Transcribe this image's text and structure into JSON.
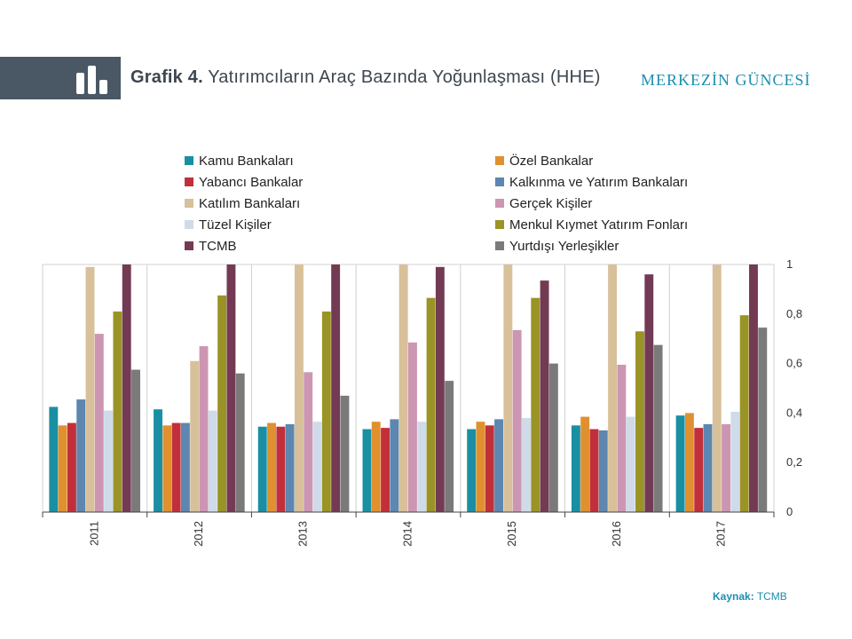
{
  "header": {
    "title_prefix": "Grafik 4.",
    "title": "Yatırımcıların Araç Bazında Yoğunlaşması (HHE)",
    "brand": "MERKEZİN GÜNCESİ"
  },
  "source": {
    "label": "Kaynak:",
    "value": "TCMB"
  },
  "colors": {
    "header_band": "#4a5866",
    "brand": "#1a8fb0"
  },
  "chart_data": {
    "type": "bar",
    "title": "",
    "xlabel": "",
    "ylabel": "",
    "ylim": [
      0,
      1
    ],
    "yticks": [
      "0",
      "0,2",
      "0,4",
      "0,6",
      "0,8",
      "1"
    ],
    "y_axis_position": "right",
    "grid": false,
    "legend_placement": "top",
    "categories": [
      "2011",
      "2012",
      "2013",
      "2014",
      "2015",
      "2016",
      "2017"
    ],
    "series": [
      {
        "name": "Kamu Bankaları",
        "color": "#1a8fa3",
        "values": [
          0.425,
          0.415,
          0.345,
          0.335,
          0.335,
          0.35,
          0.39
        ]
      },
      {
        "name": "Özel Bankalar",
        "color": "#e0902e",
        "values": [
          0.35,
          0.35,
          0.36,
          0.365,
          0.365,
          0.385,
          0.4
        ]
      },
      {
        "name": "Yabancı Bankalar",
        "color": "#c1303a",
        "values": [
          0.36,
          0.36,
          0.345,
          0.34,
          0.35,
          0.335,
          0.34
        ]
      },
      {
        "name": "Kalkınma ve Yatırım Bankaları",
        "color": "#5d86b0",
        "values": [
          0.455,
          0.36,
          0.355,
          0.375,
          0.375,
          0.33,
          0.355
        ]
      },
      {
        "name": "Katılım Bankaları",
        "color": "#d8c09a",
        "values": [
          0.99,
          0.61,
          1.0,
          1.0,
          1.0,
          1.0,
          1.0
        ]
      },
      {
        "name": "Gerçek Kişiler",
        "color": "#cc96b3",
        "values": [
          0.72,
          0.67,
          0.565,
          0.685,
          0.735,
          0.595,
          0.355
        ]
      },
      {
        "name": "Tüzel Kişiler",
        "color": "#cfdbe8",
        "values": [
          0.41,
          0.41,
          0.365,
          0.365,
          0.38,
          0.385,
          0.405
        ]
      },
      {
        "name": "Menkul Kıymet Yatırım Fonları",
        "color": "#9a9326",
        "values": [
          0.81,
          0.875,
          0.81,
          0.865,
          0.865,
          0.73,
          0.795
        ]
      },
      {
        "name": "TCMB",
        "color": "#733a54",
        "values": [
          1.0,
          1.0,
          1.0,
          0.99,
          0.935,
          0.96,
          1.0
        ]
      },
      {
        "name": "Yurtdışı Yerleşikler",
        "color": "#7a7a7a",
        "values": [
          0.575,
          0.56,
          0.47,
          0.53,
          0.6,
          0.675,
          0.745
        ]
      }
    ]
  }
}
